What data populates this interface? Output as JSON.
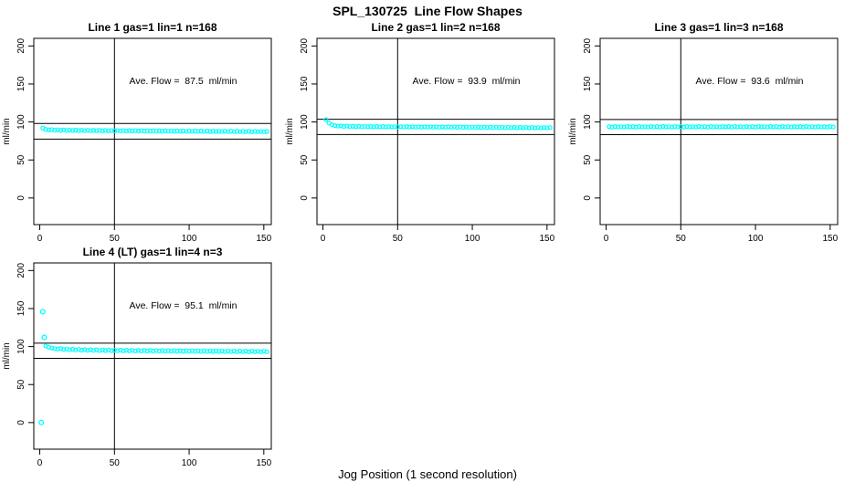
{
  "window": {
    "title": "SPL_130725  Line Flow Shapes",
    "xlabel": "Jog Position (1 second resolution)"
  },
  "colors": {
    "background": "#ffffff",
    "points": "#00ffff",
    "axis": "#000000",
    "text": "#000000"
  },
  "chart_data": [
    {
      "type": "scatter",
      "title": "Line 1 gas=1 lin=1 n=168",
      "annotation": "Ave. Flow =  87.5  ml/min",
      "ave_flow_ml_min": 87.5,
      "ylabel": "ml/min",
      "xlim": [
        -4,
        155
      ],
      "ylim": [
        -35,
        210
      ],
      "x_ticks": [
        0,
        50,
        100,
        150
      ],
      "y_ticks": [
        0,
        50,
        100,
        150,
        200
      ],
      "vline_x": 50,
      "hlines": [
        98.0,
        77.5
      ],
      "annotation_pos": [
        96,
        150
      ],
      "series": {
        "name": "flow",
        "marker": "open-circle",
        "x_start": 2,
        "x_step": 2,
        "y": [
          92.0,
          90.3,
          89.6,
          90.0,
          89.2,
          89.7,
          89.0,
          89.5,
          88.9,
          89.4,
          88.8,
          89.3,
          88.7,
          89.2,
          88.6,
          89.1,
          88.6,
          89.0,
          88.5,
          89.0,
          88.4,
          88.9,
          88.4,
          88.8,
          88.3,
          88.8,
          88.3,
          88.7,
          88.2,
          88.7,
          88.2,
          88.6,
          88.1,
          88.6,
          88.1,
          88.5,
          88.0,
          88.5,
          88.0,
          88.4,
          87.9,
          88.4,
          87.9,
          88.3,
          87.8,
          88.3,
          87.8,
          88.2,
          87.7,
          88.2,
          87.7,
          88.1,
          87.6,
          88.1,
          87.6,
          88.0,
          87.5,
          88.0,
          87.5,
          87.9,
          87.4,
          87.9,
          87.4,
          87.8,
          87.3,
          87.8,
          87.3,
          87.7,
          87.2,
          87.7,
          87.2,
          87.6,
          87.1,
          87.6,
          87.1,
          87.5
        ]
      },
      "outliers": []
    },
    {
      "type": "scatter",
      "title": "Line 2 gas=1 lin=2 n=168",
      "annotation": "Ave. Flow =  93.9  ml/min",
      "ave_flow_ml_min": 93.9,
      "ylabel": "ml/min",
      "xlim": [
        -4,
        155
      ],
      "ylim": [
        -35,
        210
      ],
      "x_ticks": [
        0,
        50,
        100,
        150
      ],
      "y_ticks": [
        0,
        50,
        100,
        150,
        200
      ],
      "vline_x": 50,
      "hlines": [
        103.5,
        83.5
      ],
      "annotation_pos": [
        96,
        150
      ],
      "series": {
        "name": "flow",
        "marker": "open-circle",
        "x_start": 2,
        "x_step": 2,
        "y": [
          103.2,
          98.6,
          96.4,
          95.2,
          94.6,
          94.9,
          94.1,
          94.6,
          93.9,
          94.4,
          93.8,
          94.3,
          93.7,
          94.2,
          93.7,
          94.1,
          93.6,
          94.1,
          93.6,
          94.0,
          93.5,
          94.0,
          93.5,
          93.9,
          93.4,
          93.9,
          93.4,
          93.8,
          93.3,
          93.8,
          93.3,
          93.7,
          93.2,
          93.7,
          93.2,
          93.6,
          93.1,
          93.6,
          93.1,
          93.5,
          93.0,
          93.5,
          93.0,
          93.4,
          92.9,
          93.4,
          92.9,
          93.3,
          92.8,
          93.3,
          92.8,
          93.2,
          92.7,
          93.2,
          92.7,
          93.1,
          92.6,
          93.1,
          92.6,
          93.0,
          92.5,
          93.0,
          92.5,
          92.9,
          92.4,
          92.9,
          92.4,
          92.8,
          92.3,
          92.8,
          92.3,
          92.7,
          92.2,
          92.7,
          92.2,
          92.6
        ]
      },
      "outliers": []
    },
    {
      "type": "scatter",
      "title": "Line 3 gas=1 lin=3 n=168",
      "annotation": "Ave. Flow =  93.6  ml/min",
      "ave_flow_ml_min": 93.6,
      "ylabel": "ml/min",
      "xlim": [
        -4,
        155
      ],
      "ylim": [
        -35,
        210
      ],
      "x_ticks": [
        0,
        50,
        100,
        150
      ],
      "y_ticks": [
        0,
        50,
        100,
        150,
        200
      ],
      "vline_x": 50,
      "hlines": [
        103.3,
        83.3
      ],
      "annotation_pos": [
        96,
        150
      ],
      "series": {
        "name": "flow",
        "marker": "open-circle",
        "x_start": 2,
        "x_step": 2,
        "y": [
          93.8,
          93.2,
          94.0,
          93.4,
          93.9,
          93.3,
          94.1,
          93.5,
          93.8,
          93.2,
          94.0,
          93.4,
          93.9,
          93.3,
          94.0,
          93.4,
          93.8,
          93.2,
          94.1,
          93.5,
          93.9,
          93.3,
          94.0,
          93.4,
          93.8,
          93.2,
          94.0,
          93.5,
          93.9,
          93.3,
          94.1,
          93.4,
          93.8,
          93.2,
          94.0,
          93.4,
          93.9,
          93.3,
          94.0,
          93.5,
          93.8,
          93.2,
          94.1,
          93.4,
          93.9,
          93.3,
          94.0,
          93.4,
          93.8,
          93.2,
          94.0,
          93.5,
          93.9,
          93.3,
          94.1,
          93.4,
          93.8,
          93.2,
          94.0,
          93.4,
          93.9,
          93.3,
          94.0,
          93.5,
          93.8,
          93.2,
          94.1,
          93.4,
          93.9,
          93.3,
          94.0,
          93.4,
          93.8,
          93.2,
          94.0,
          93.4
        ]
      },
      "outliers": []
    },
    {
      "type": "scatter",
      "title": "Line 4 (LT) gas=1 lin=4 n=3",
      "annotation": "Ave. Flow =  95.1  ml/min",
      "ave_flow_ml_min": 95.1,
      "ylabel": "ml/min",
      "xlim": [
        -4,
        155
      ],
      "ylim": [
        -35,
        210
      ],
      "x_ticks": [
        0,
        50,
        100,
        150
      ],
      "y_ticks": [
        0,
        50,
        100,
        150,
        200
      ],
      "vline_x": 50,
      "hlines": [
        104.5,
        84.5
      ],
      "annotation_pos": [
        96,
        150
      ],
      "series": {
        "name": "flow",
        "marker": "open-circle",
        "x_start": 4,
        "x_step": 2,
        "y": [
          100.8,
          99.2,
          98.1,
          97.3,
          96.7,
          97.4,
          96.2,
          96.9,
          95.8,
          96.5,
          95.5,
          96.3,
          95.3,
          96.1,
          95.1,
          95.9,
          94.9,
          95.8,
          94.8,
          95.6,
          94.7,
          95.5,
          94.6,
          95.4,
          94.5,
          95.3,
          94.4,
          95.2,
          94.3,
          95.1,
          94.2,
          95.0,
          94.2,
          94.9,
          94.1,
          94.9,
          94.0,
          94.8,
          94.0,
          94.7,
          93.9,
          94.7,
          93.9,
          94.6,
          93.8,
          94.6,
          93.8,
          94.5,
          93.7,
          94.5,
          93.7,
          94.4,
          93.6,
          94.4,
          93.6,
          94.3,
          93.5,
          94.3,
          93.5,
          94.2,
          93.4,
          94.2,
          93.4,
          94.1,
          93.3,
          94.1,
          93.3,
          94.0,
          93.2,
          94.0,
          93.2,
          93.9,
          93.1,
          93.9,
          93.1
        ]
      },
      "outliers": [
        [
          1,
          0
        ],
        [
          2,
          146
        ],
        [
          3,
          112
        ]
      ]
    }
  ]
}
